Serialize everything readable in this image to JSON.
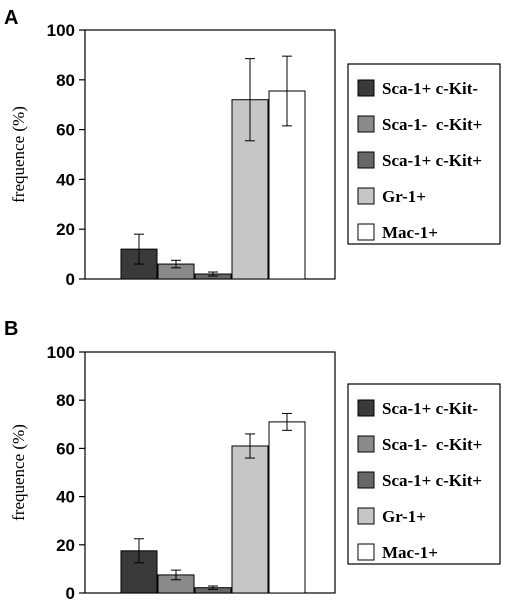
{
  "chart_data": [
    {
      "type": "bar",
      "panel": "A",
      "ylabel": "frequence (%)",
      "ylim": [
        0,
        100
      ],
      "yticks": [
        "0",
        "20",
        "40",
        "60",
        "80",
        "100"
      ],
      "categories": [
        "Sca-1+ c-Kit-",
        "Sca-1-  c-Kit+",
        "Sca-1+ c-Kit+",
        "Gr-1+",
        "Mac-1+"
      ],
      "values": [
        12,
        6,
        2,
        72,
        75.5
      ],
      "errors": [
        6,
        1.5,
        0.8,
        16.5,
        14
      ],
      "colors": [
        "#3a3a3a",
        "#8a8a8a",
        "#666666",
        "#c6c6c6",
        "#ffffff"
      ],
      "legend_position": "right",
      "grid": false
    },
    {
      "type": "bar",
      "panel": "B",
      "ylabel": "frequence (%)",
      "ylim": [
        0,
        100
      ],
      "yticks": [
        "0",
        "20",
        "40",
        "60",
        "80",
        "100"
      ],
      "categories": [
        "Sca-1+ c-Kit-",
        "Sca-1-  c-Kit+",
        "Sca-1+ c-Kit+",
        "Gr-1+",
        "Mac-1+"
      ],
      "values": [
        17.5,
        7.5,
        2.2,
        61,
        71
      ],
      "errors": [
        5,
        2,
        0.7,
        5,
        3.5
      ],
      "colors": [
        "#3a3a3a",
        "#8a8a8a",
        "#666666",
        "#c6c6c6",
        "#ffffff"
      ],
      "legend_position": "right",
      "grid": false
    }
  ]
}
